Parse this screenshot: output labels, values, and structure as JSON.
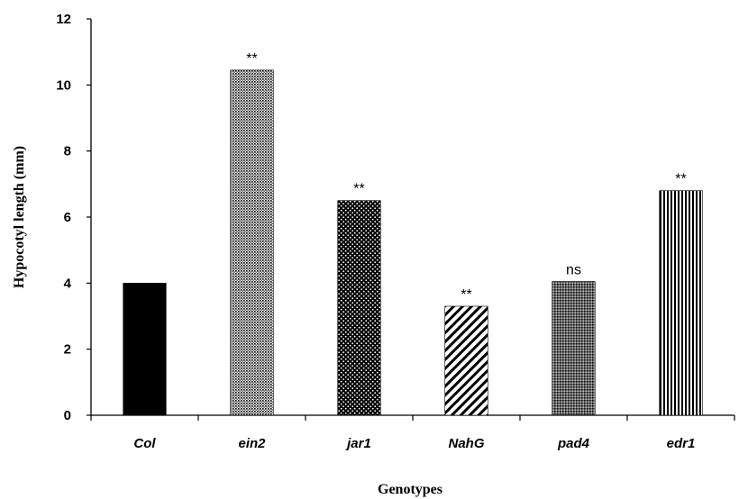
{
  "chart_data": {
    "type": "bar",
    "title": "",
    "xlabel": "Genotypes",
    "ylabel": "Hypocotyl length (mm)",
    "ylim": [
      0,
      12
    ],
    "yticks": [
      "0",
      "2",
      "4",
      "6",
      "8",
      "10",
      "12"
    ],
    "categories": [
      "Col",
      "ein2",
      "jar1",
      "NahG",
      "pad4",
      "edr1"
    ],
    "values": [
      4.0,
      10.45,
      6.5,
      3.3,
      4.05,
      6.8
    ],
    "significance": [
      "",
      "**",
      "**",
      "**",
      "ns",
      "**"
    ],
    "fills": [
      "solid",
      "fine-dots",
      "dots",
      "diagonal",
      "grid",
      "vertical"
    ],
    "grid": false,
    "legend": "none",
    "bar_color": "#000000"
  }
}
